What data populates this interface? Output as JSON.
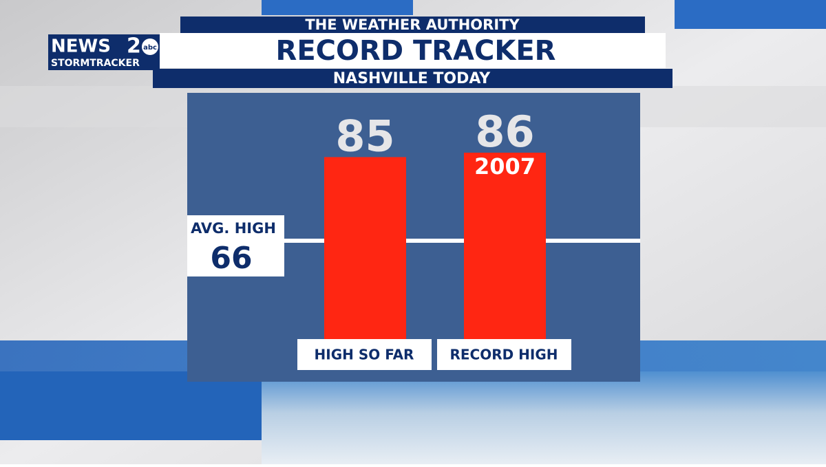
{
  "logo": {
    "news": "NEWS",
    "number": "2",
    "network": "abc",
    "tagline": "STORMTRACKER"
  },
  "chart_data": {
    "type": "bar",
    "header": "THE WEATHER AUTHORITY",
    "title": "RECORD TRACKER",
    "subtitle": "NASHVILLE TODAY",
    "categories": [
      "HIGH SO FAR",
      "RECORD HIGH"
    ],
    "values": [
      85,
      86
    ],
    "color": "#ff2612",
    "annotation": "2007",
    "reference_line": {
      "label": "AVG. HIGH",
      "value": 66
    }
  }
}
